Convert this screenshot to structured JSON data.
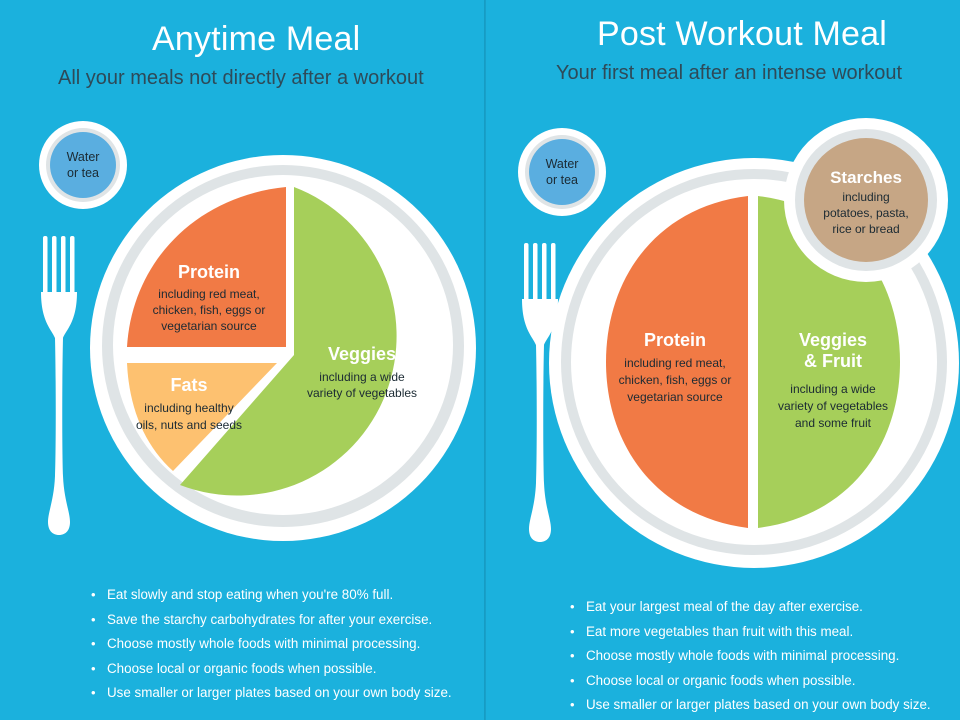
{
  "left": {
    "title": "Anytime Meal",
    "subtitle": "All your meals not directly after a workout",
    "drink": {
      "line1": "Water",
      "line2": "or tea"
    },
    "protein": {
      "label": "Protein",
      "desc1": "including red meat,",
      "desc2": "chicken, fish, eggs or",
      "desc3": "vegetarian source"
    },
    "fats": {
      "label": "Fats",
      "desc1": "including healthy",
      "desc2": "oils, nuts and seeds"
    },
    "veggies": {
      "label": "Veggies",
      "desc1": "including a wide",
      "desc2": "variety of vegetables"
    },
    "bullets": [
      "Eat slowly and stop eating when you're 80% full.",
      "Save the starchy carbohydrates for after your exercise.",
      "Choose mostly whole foods with minimal processing.",
      "Choose local or organic foods when possible.",
      "Use smaller or larger plates based on your own body size."
    ]
  },
  "right": {
    "title": "Post Workout Meal",
    "subtitle": "Your first meal after an intense workout",
    "drink": {
      "line1": "Water",
      "line2": "or tea"
    },
    "starches": {
      "label": "Starches",
      "desc1": "including",
      "desc2": "potatoes, pasta,",
      "desc3": "rice or bread"
    },
    "protein": {
      "label": "Protein",
      "desc1": "including red meat,",
      "desc2": "chicken, fish, eggs or",
      "desc3": "vegetarian source"
    },
    "veggies": {
      "label": "Veggies",
      "label2": "& Fruit",
      "desc1": "including a wide",
      "desc2": "variety of vegetables",
      "desc3": "and some fruit"
    },
    "bullets": [
      "Eat your largest meal of the day after exercise.",
      "Eat more vegetables than fruit with this meal.",
      "Choose mostly whole foods with minimal processing.",
      "Choose local or organic foods when possible.",
      "Use smaller or larger plates based on your own body size."
    ]
  },
  "colors": {
    "background": "#1bb1dd",
    "protein": "#f17a45",
    "veggies": "#a6cf5a",
    "fats": "#fdc170",
    "starches": "#c6a685",
    "water": "#5aaee0",
    "plate": "#ffffff",
    "plate_inner": "#dfe4e6"
  }
}
